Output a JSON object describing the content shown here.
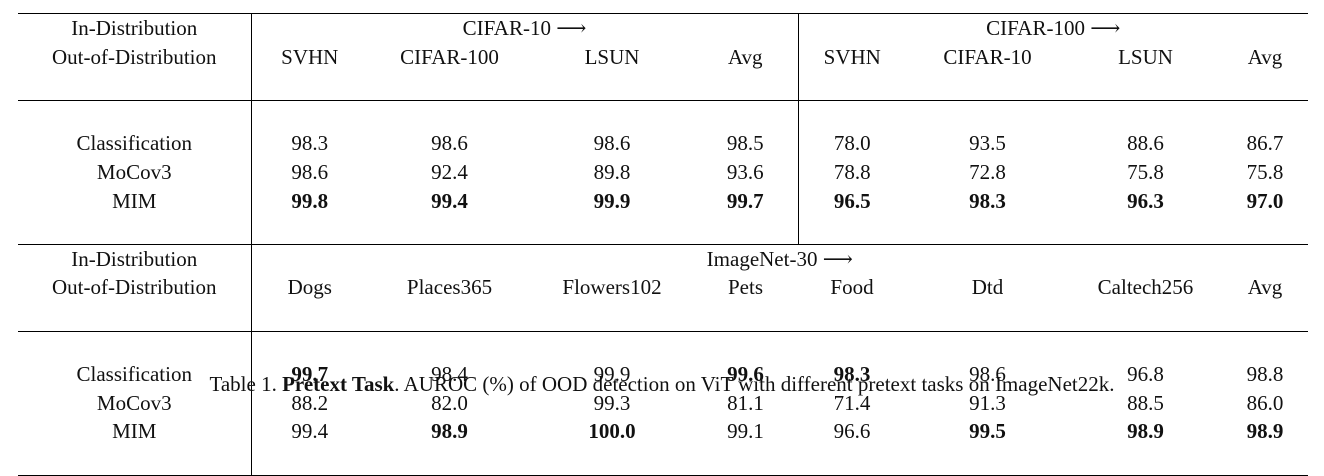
{
  "table": {
    "header_in": "In-Distribution",
    "header_out": "Out-of-Distribution",
    "sections": [
      {
        "groups": [
          "CIFAR-10 ⟶",
          "CIFAR-100 ⟶"
        ],
        "columns": [
          "SVHN",
          "CIFAR-100",
          "LSUN",
          "Avg",
          "SVHN",
          "CIFAR-10",
          "LSUN",
          "Avg"
        ],
        "rows": [
          {
            "label": "Classification",
            "values": [
              "98.3",
              "98.6",
              "98.6",
              "98.5",
              "78.0",
              "93.5",
              "88.6",
              "86.7"
            ],
            "bold": [
              false,
              false,
              false,
              false,
              false,
              false,
              false,
              false
            ]
          },
          {
            "label": "MoCov3",
            "values": [
              "98.6",
              "92.4",
              "89.8",
              "93.6",
              "78.8",
              "72.8",
              "75.8",
              "75.8"
            ],
            "bold": [
              false,
              false,
              false,
              false,
              false,
              false,
              false,
              false
            ]
          },
          {
            "label": "MIM",
            "values": [
              "99.8",
              "99.4",
              "99.9",
              "99.7",
              "96.5",
              "98.3",
              "96.3",
              "97.0"
            ],
            "bold": [
              true,
              true,
              true,
              true,
              true,
              true,
              true,
              true
            ]
          }
        ]
      },
      {
        "groups": [
          "ImageNet-30 ⟶"
        ],
        "columns": [
          "Dogs",
          "Places365",
          "Flowers102",
          "Pets",
          "Food",
          "Dtd",
          "Caltech256",
          "Avg"
        ],
        "rows": [
          {
            "label": "Classification",
            "values": [
              "99.7",
              "98.4",
              "99.9",
              "99.6",
              "98.3",
              "98.6",
              "96.8",
              "98.8"
            ],
            "bold": [
              true,
              false,
              false,
              true,
              true,
              false,
              false,
              false
            ]
          },
          {
            "label": "MoCov3",
            "values": [
              "88.2",
              "82.0",
              "99.3",
              "81.1",
              "71.4",
              "91.3",
              "88.5",
              "86.0"
            ],
            "bold": [
              false,
              false,
              false,
              false,
              false,
              false,
              false,
              false
            ]
          },
          {
            "label": "MIM",
            "values": [
              "99.4",
              "98.9",
              "100.0",
              "99.1",
              "96.6",
              "99.5",
              "98.9",
              "98.9"
            ],
            "bold": [
              false,
              true,
              true,
              false,
              false,
              true,
              true,
              true
            ]
          }
        ]
      }
    ]
  },
  "caption": {
    "prefix": "Table 1. ",
    "bold": "Pretext Task",
    "rest": ". AUROC (%) of OOD detection on ViT with different pretext tasks on ImageNet22k."
  }
}
